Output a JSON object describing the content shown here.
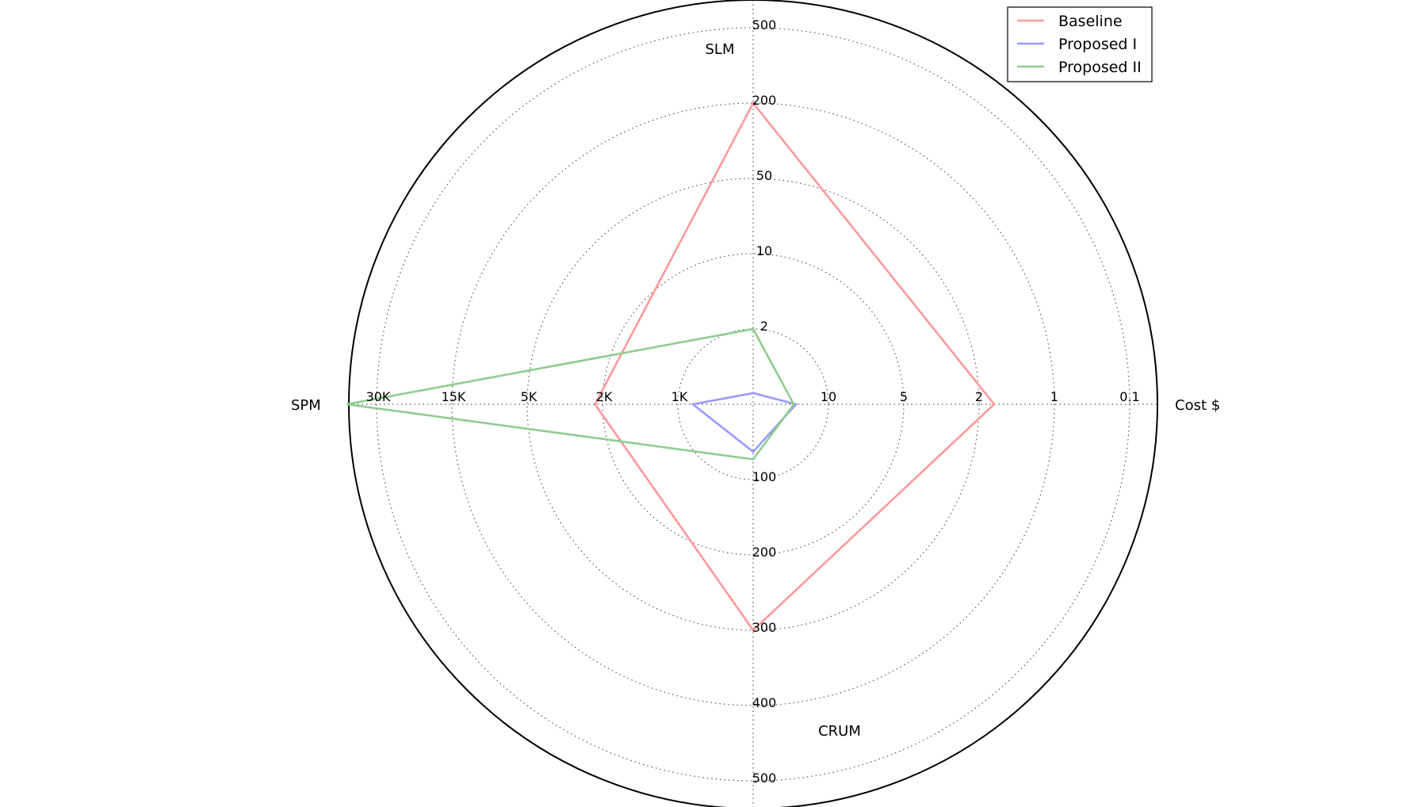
{
  "chart_data": {
    "type": "radar",
    "title": "",
    "grid": true,
    "axes": [
      {
        "name": "SLM",
        "ticks": [
          "2",
          "10",
          "50",
          "200",
          "500"
        ]
      },
      {
        "name": "Cost $",
        "ticks": [
          "10",
          "5",
          "2",
          "1",
          "0.1"
        ]
      },
      {
        "name": "CRUM",
        "ticks": [
          "100",
          "200",
          "300",
          "400",
          "500"
        ]
      },
      {
        "name": "SPM",
        "ticks": [
          "1K",
          "2K",
          "5K",
          "15K",
          "30K"
        ]
      }
    ],
    "legend": {
      "position": "top-right",
      "entries": [
        "Baseline",
        "Proposed I",
        "Proposed II"
      ]
    },
    "series": [
      {
        "name": "Baseline",
        "color": "#ff9999",
        "values": {
          "SLM": 200,
          "Cost $": 1.8,
          "CRUM": 300,
          "SPM": 2300
        }
      },
      {
        "name": "Proposed I",
        "color": "#9999ff",
        "values": {
          "SLM": 0.3,
          "Cost $": 14.3,
          "CRUM": 63,
          "SPM": 800
        }
      },
      {
        "name": "Proposed II",
        "color": "#8fcc8f",
        "values": {
          "SLM": 2,
          "Cost $": 14.6,
          "CRUM": 73,
          "SPM": 36000
        }
      }
    ]
  }
}
